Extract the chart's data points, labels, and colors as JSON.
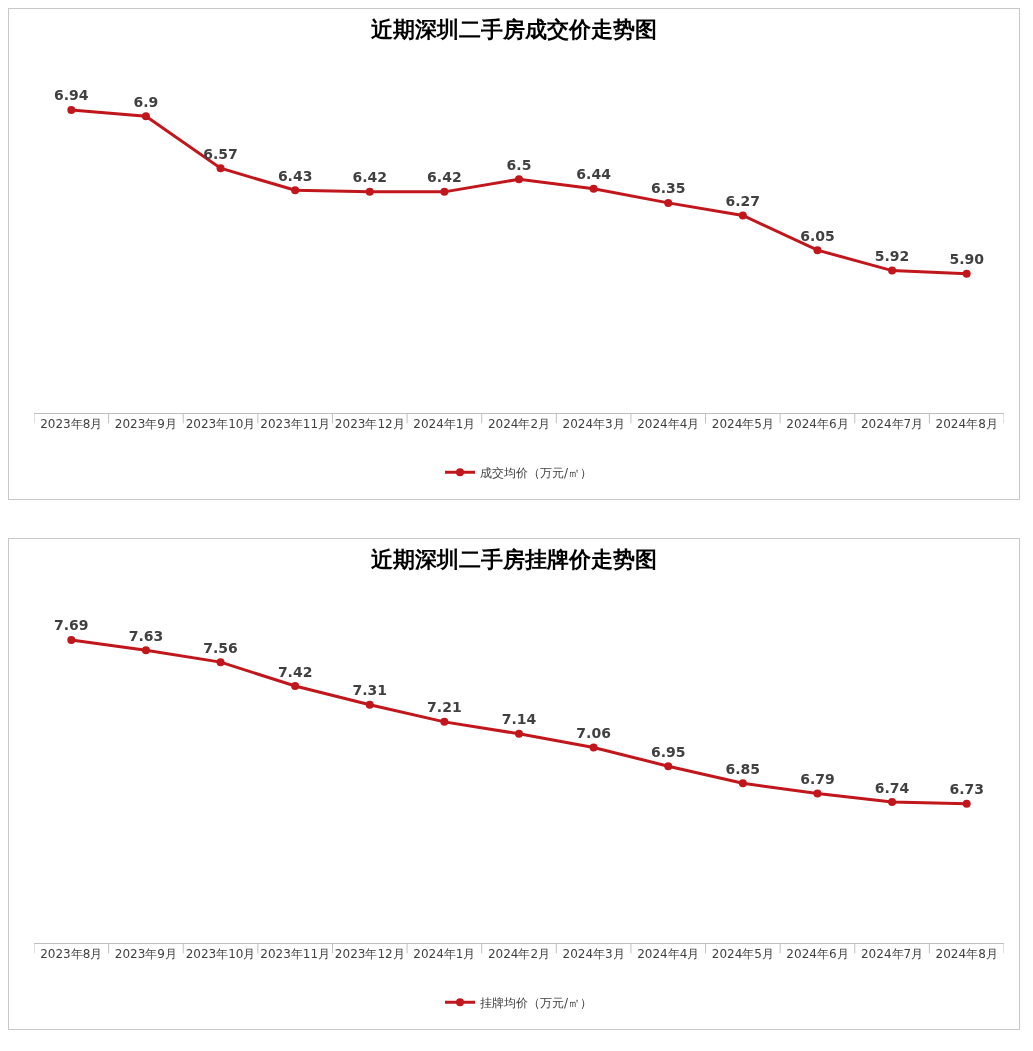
{
  "chart_data": [
    {
      "type": "line",
      "title": "近期深圳二手房成交价走势图",
      "categories": [
        "2023年8月",
        "2023年9月",
        "2023年10月",
        "2023年11月",
        "2023年12月",
        "2024年1月",
        "2024年2月",
        "2024年3月",
        "2024年4月",
        "2024年5月",
        "2024年6月",
        "2024年7月",
        "2024年8月"
      ],
      "series": [
        {
          "name": "成交均价（万元/㎡）",
          "color": "#c0161c",
          "values": [
            6.94,
            6.9,
            6.57,
            6.43,
            6.42,
            6.42,
            6.5,
            6.44,
            6.35,
            6.27,
            6.05,
            5.92,
            5.9
          ],
          "value_labels": [
            "6.94",
            "6.9",
            "6.57",
            "6.43",
            "6.42",
            "6.42",
            "6.5",
            "6.44",
            "6.35",
            "6.27",
            "6.05",
            "5.92",
            "5.90"
          ]
        }
      ],
      "legend": "bottom",
      "marker": "circle",
      "line_style": "solid",
      "grid": false,
      "tick_labels": "x"
    },
    {
      "type": "line",
      "title": "近期深圳二手房挂牌价走势图",
      "categories": [
        "2023年8月",
        "2023年9月",
        "2023年10月",
        "2023年11月",
        "2023年12月",
        "2024年1月",
        "2024年2月",
        "2024年3月",
        "2024年4月",
        "2024年5月",
        "2024年6月",
        "2024年7月",
        "2024年8月"
      ],
      "series": [
        {
          "name": "挂牌均价（万元/㎡）",
          "color": "#c0161c",
          "values": [
            7.69,
            7.63,
            7.56,
            7.42,
            7.31,
            7.21,
            7.14,
            7.06,
            6.95,
            6.85,
            6.79,
            6.74,
            6.73
          ],
          "value_labels": [
            "7.69",
            "7.63",
            "7.56",
            "7.42",
            "7.31",
            "7.21",
            "7.14",
            "7.06",
            "6.95",
            "6.85",
            "6.79",
            "6.74",
            "6.73"
          ]
        }
      ],
      "legend": "bottom",
      "marker": "circle",
      "line_style": "solid",
      "grid": false,
      "tick_labels": "x"
    }
  ]
}
